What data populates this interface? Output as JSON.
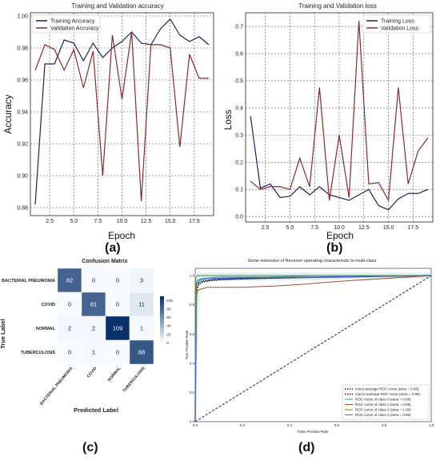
{
  "panel_labels": [
    "(a)",
    "(b)",
    "(c)",
    "(d)"
  ],
  "chart_data": [
    {
      "type": "line",
      "title": "Training and Validation accuracy",
      "xlabel": "Epoch",
      "ylabel": "Accuracy",
      "xlim": [
        0.5,
        19.5
      ],
      "ylim": [
        0.875,
        1.002
      ],
      "xticks": [
        "2.5",
        "5.0",
        "7.5",
        "10.0",
        "12.5",
        "15.0",
        "17.5"
      ],
      "yticks": [
        "0.88",
        "0.90",
        "0.92",
        "0.94",
        "0.96",
        "0.98",
        "1.00"
      ],
      "grid": true,
      "legend_position": "top-left",
      "x": [
        1,
        2,
        3,
        4,
        5,
        6,
        7,
        8,
        9,
        10,
        11,
        12,
        13,
        14,
        15,
        16,
        17,
        18,
        19
      ],
      "series": [
        {
          "name": "Training Accuracy",
          "color": "#1f1f5e",
          "values": [
            0.882,
            0.97,
            0.97,
            0.985,
            0.983,
            0.972,
            0.983,
            0.974,
            0.98,
            0.984,
            0.99,
            0.983,
            0.982,
            0.992,
            0.998,
            0.988,
            0.984,
            0.987,
            0.982
          ]
        },
        {
          "name": "Validation Accuracy",
          "color": "#8b2a2a",
          "values": [
            0.966,
            0.982,
            0.979,
            0.966,
            0.979,
            0.955,
            0.978,
            0.9,
            0.988,
            0.948,
            0.99,
            0.884,
            0.982,
            0.982,
            0.98,
            0.918,
            0.976,
            0.961,
            0.961
          ]
        }
      ]
    },
    {
      "type": "line",
      "title": "Training and Validation loss",
      "xlabel": "Epoch",
      "ylabel": "Loss",
      "xlim": [
        0.5,
        19.5
      ],
      "ylim": [
        -0.02,
        0.75
      ],
      "xticks": [
        "2.5",
        "5.0",
        "7.5",
        "10.0",
        "12.5",
        "15.0",
        "17.5"
      ],
      "yticks": [
        "0.0",
        "0.1",
        "0.2",
        "0.3",
        "0.4",
        "0.5",
        "0.6",
        "0.7"
      ],
      "grid": true,
      "legend_position": "top-right",
      "x": [
        1,
        2,
        3,
        4,
        5,
        6,
        7,
        8,
        9,
        10,
        11,
        12,
        13,
        14,
        15,
        16,
        17,
        18,
        19
      ],
      "series": [
        {
          "name": "Training Loss",
          "color": "#1f1f5e",
          "values": [
            0.37,
            0.105,
            0.12,
            0.07,
            0.075,
            0.11,
            0.08,
            0.11,
            0.08,
            0.07,
            0.06,
            0.08,
            0.1,
            0.04,
            0.025,
            0.065,
            0.085,
            0.085,
            0.1
          ]
        },
        {
          "name": "Validation Loss",
          "color": "#8b2a2a",
          "values": [
            0.13,
            0.1,
            0.11,
            0.11,
            0.1,
            0.215,
            0.11,
            0.475,
            0.06,
            0.3,
            0.07,
            0.72,
            0.12,
            0.125,
            0.06,
            0.475,
            0.12,
            0.24,
            0.29
          ]
        }
      ]
    },
    {
      "type": "heatmap",
      "title": "Confusion Matrix",
      "xlabel": "Predicted Label",
      "ylabel": "True Label",
      "row_labels": [
        "BACTERIAL PNEUMONIA",
        "COVID",
        "NORMAL",
        "TUBERCULOSIS"
      ],
      "col_labels": [
        "BACTERIAL PNEUMONIA",
        "COVID",
        "NORMAL",
        "TUBERCULOSIS"
      ],
      "matrix": [
        [
          82,
          0,
          0,
          3
        ],
        [
          0,
          81,
          0,
          11
        ],
        [
          2,
          2,
          109,
          1
        ],
        [
          0,
          1,
          0,
          88
        ]
      ],
      "colorbar_ticks": [
        "100",
        "80",
        "60",
        "40",
        "20",
        "0"
      ],
      "vmin": 0,
      "vmax": 109
    },
    {
      "type": "line",
      "title": "Some extension of Receiver operating characteristic to multi-class",
      "xlabel": "False Positive Rate",
      "ylabel": "True Positive Rate",
      "xlim": [
        0,
        1
      ],
      "ylim": [
        0,
        1.05
      ],
      "xticks": [
        "0.0",
        "0.2",
        "0.4",
        "0.6",
        "0.8",
        "1.0"
      ],
      "yticks": [
        "0.0",
        "0.2",
        "0.4",
        "0.6",
        "0.8",
        "1.0"
      ],
      "grid": false,
      "legend_position": "lower-right",
      "series": [
        {
          "name": "micro-average ROC curve (area = 0.98)",
          "color": "#222222",
          "dash": "dotted",
          "x": [
            0,
            0.005,
            0.015,
            0.03,
            0.06,
            0.1,
            0.2,
            0.3,
            0.5,
            0.7,
            0.85,
            1.0
          ],
          "y": [
            0,
            0.9,
            0.94,
            0.955,
            0.965,
            0.972,
            0.978,
            0.982,
            0.988,
            0.993,
            0.997,
            1.0
          ]
        },
        {
          "name": "macro-average ROC curve (area = 0.98)",
          "color": "#222222",
          "dash": "dotted",
          "x": [
            0,
            0.005,
            0.015,
            0.03,
            0.06,
            0.1,
            0.2,
            0.3,
            0.5,
            0.7,
            0.85,
            1.0
          ],
          "y": [
            0,
            0.91,
            0.95,
            0.963,
            0.97,
            0.975,
            0.98,
            0.984,
            0.99,
            0.994,
            0.998,
            1.0
          ]
        },
        {
          "name": "ROC curve of class 0 (area = 0.99)",
          "color": "#3a8fa8",
          "x": [
            0,
            0.005,
            0.01,
            0.03,
            0.1,
            0.3,
            0.5,
            1.0
          ],
          "y": [
            0,
            0.95,
            0.97,
            0.98,
            0.99,
            0.99,
            1.0,
            1.0
          ]
        },
        {
          "name": "ROC curve of class 1 (area = 0.95)",
          "color": "#a0522d",
          "x": [
            0,
            0.005,
            0.01,
            0.03,
            0.05,
            0.2,
            0.35,
            0.45,
            0.6,
            0.8,
            1.0
          ],
          "y": [
            0,
            0.86,
            0.9,
            0.91,
            0.92,
            0.92,
            0.93,
            0.94,
            0.96,
            0.98,
            1.0
          ]
        },
        {
          "name": "ROC curve of class 2 (area = 1.00)",
          "color": "#6b8e23",
          "x": [
            0,
            0.002,
            0.01,
            1.0
          ],
          "y": [
            0,
            0.99,
            1.0,
            1.0
          ]
        },
        {
          "name": "ROC curve of class 3 (area = 0.99)",
          "color": "#4169e1",
          "x": [
            0,
            0.005,
            0.02,
            0.05,
            0.2,
            0.5,
            1.0
          ],
          "y": [
            0,
            0.94,
            0.97,
            0.98,
            0.985,
            0.99,
            1.0
          ]
        },
        {
          "name": "",
          "color": "#222222",
          "dash": "dashed",
          "x": [
            0,
            1
          ],
          "y": [
            0,
            1
          ]
        }
      ]
    }
  ]
}
